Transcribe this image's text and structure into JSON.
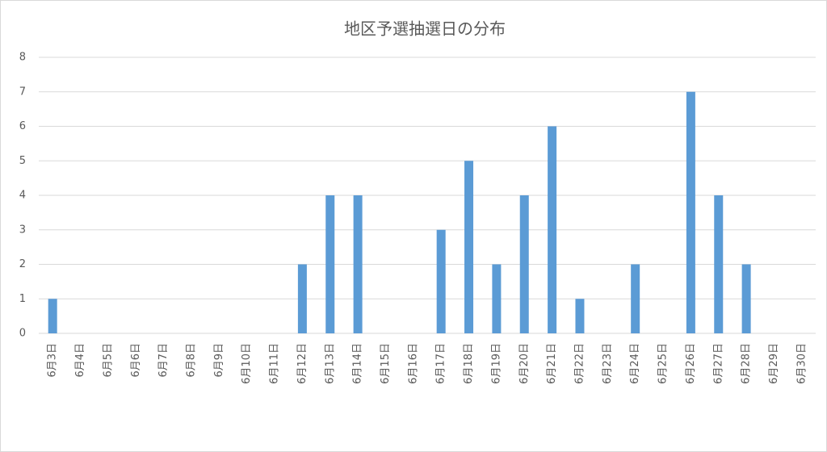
{
  "chart_data": {
    "type": "bar",
    "title": "地区予選抽選日の分布",
    "categories": [
      "6月3日",
      "6月4日",
      "6月5日",
      "6月6日",
      "6月7日",
      "6月8日",
      "6月9日",
      "6月10日",
      "6月11日",
      "6月12日",
      "6月13日",
      "6月14日",
      "6月15日",
      "6月16日",
      "6月17日",
      "6月18日",
      "6月19日",
      "6月20日",
      "6月21日",
      "6月22日",
      "6月23日",
      "6月24日",
      "6月25日",
      "6月26日",
      "6月27日",
      "6月28日",
      "6月29日",
      "6月30日"
    ],
    "values": [
      1,
      0,
      0,
      0,
      0,
      0,
      0,
      0,
      0,
      2,
      4,
      4,
      0,
      0,
      3,
      5,
      2,
      4,
      6,
      1,
      0,
      2,
      0,
      7,
      4,
      2,
      0,
      0
    ],
    "color": "#5b9bd5",
    "ylim": [
      0,
      8
    ],
    "yticks": [
      0,
      1,
      2,
      3,
      4,
      5,
      6,
      7,
      8
    ],
    "grid": true
  }
}
